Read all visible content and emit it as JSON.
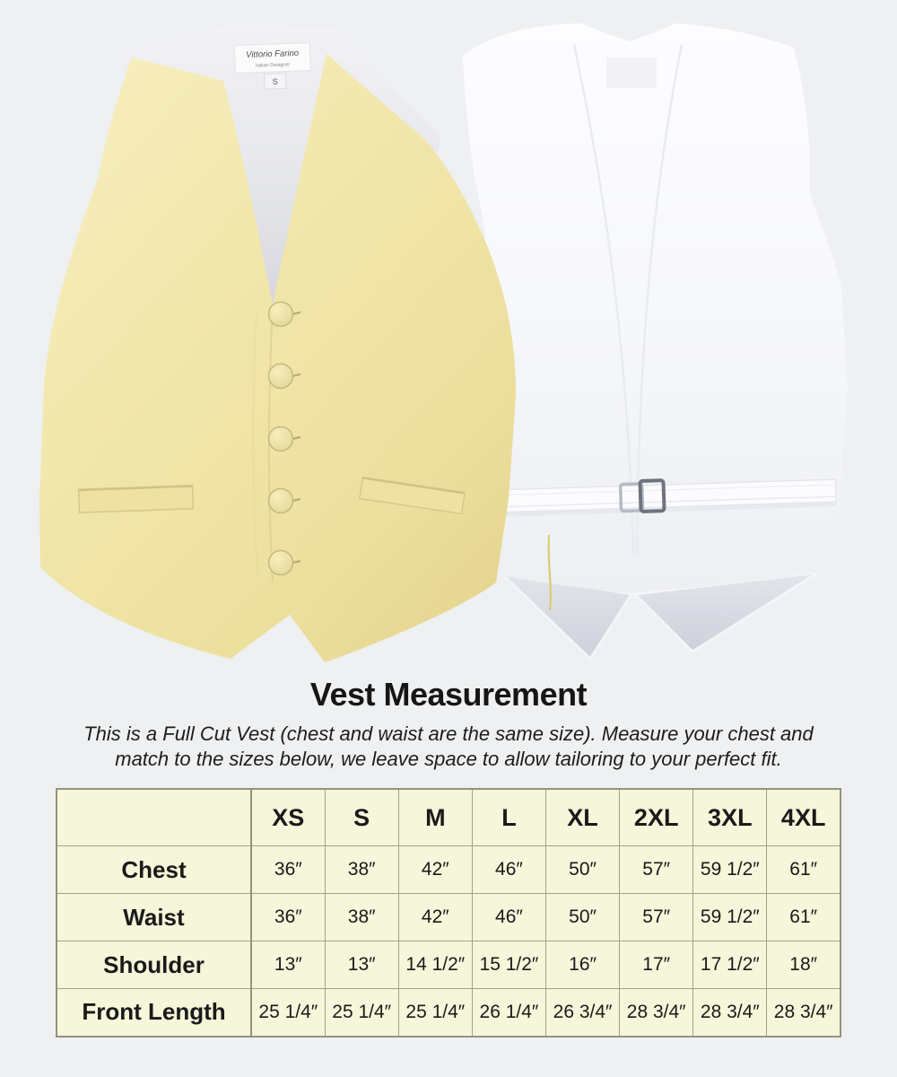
{
  "page": {
    "background_color": "#eef0f1"
  },
  "hero": {
    "front_vest": {
      "view": "front",
      "color_name": "pale yellow",
      "fabric_color": "#f1e5a8",
      "button_count": 5,
      "brand_label": {
        "line1": "Vittorio Farino",
        "line2": "Italian Designer",
        "size_tag": "S"
      }
    },
    "back_vest": {
      "view": "back",
      "color_name": "white",
      "fabric_color": "#f7f8fb",
      "has_adjustable_strap": true
    }
  },
  "measurement": {
    "title": "Vest Measurement",
    "description_line1": "This is a Full Cut Vest (chest and waist are the same size). Measure your chest and",
    "description_line2": "match to the sizes below, we leave space to allow tailoring to your perfect fit."
  },
  "size_table": {
    "corner_label": "",
    "columns": [
      "XS",
      "S",
      "M",
      "L",
      "XL",
      "2XL",
      "3XL",
      "4XL"
    ],
    "rows": [
      {
        "label": "Chest",
        "values": [
          "36″",
          "38″",
          "42″",
          "46″",
          "50″",
          "57″",
          "59 1/2″",
          "61″"
        ]
      },
      {
        "label": "Waist",
        "values": [
          "36″",
          "38″",
          "42″",
          "46″",
          "50″",
          "57″",
          "59 1/2″",
          "61″"
        ]
      },
      {
        "label": "Shoulder",
        "values": [
          "13″",
          "13″",
          "14 1/2″",
          "15 1/2″",
          "16″",
          "17″",
          "17 1/2″",
          "18″"
        ]
      },
      {
        "label": "Front Length",
        "values": [
          "25 1/4″",
          "25 1/4″",
          "25 1/4″",
          "26 1/4″",
          "26 3/4″",
          "28 3/4″",
          "28 3/4″",
          "28 3/4″"
        ]
      }
    ],
    "style": {
      "cell_background": "#f5f6da",
      "border_color": "#a2a28c"
    }
  },
  "chart_data": {
    "type": "table",
    "title": "Vest Measurement",
    "categories": [
      "XS",
      "S",
      "M",
      "L",
      "XL",
      "2XL",
      "3XL",
      "4XL"
    ],
    "series": [
      {
        "name": "Chest",
        "values": [
          36,
          38,
          42,
          46,
          50,
          57,
          59.5,
          61
        ]
      },
      {
        "name": "Waist",
        "values": [
          36,
          38,
          42,
          46,
          50,
          57,
          59.5,
          61
        ]
      },
      {
        "name": "Shoulder",
        "values": [
          13,
          13,
          14.5,
          15.5,
          16,
          17,
          17.5,
          18
        ]
      },
      {
        "name": "Front Length",
        "values": [
          25.25,
          25.25,
          25.25,
          26.25,
          26.75,
          28.75,
          28.75,
          28.75
        ]
      }
    ],
    "units": "inches"
  }
}
